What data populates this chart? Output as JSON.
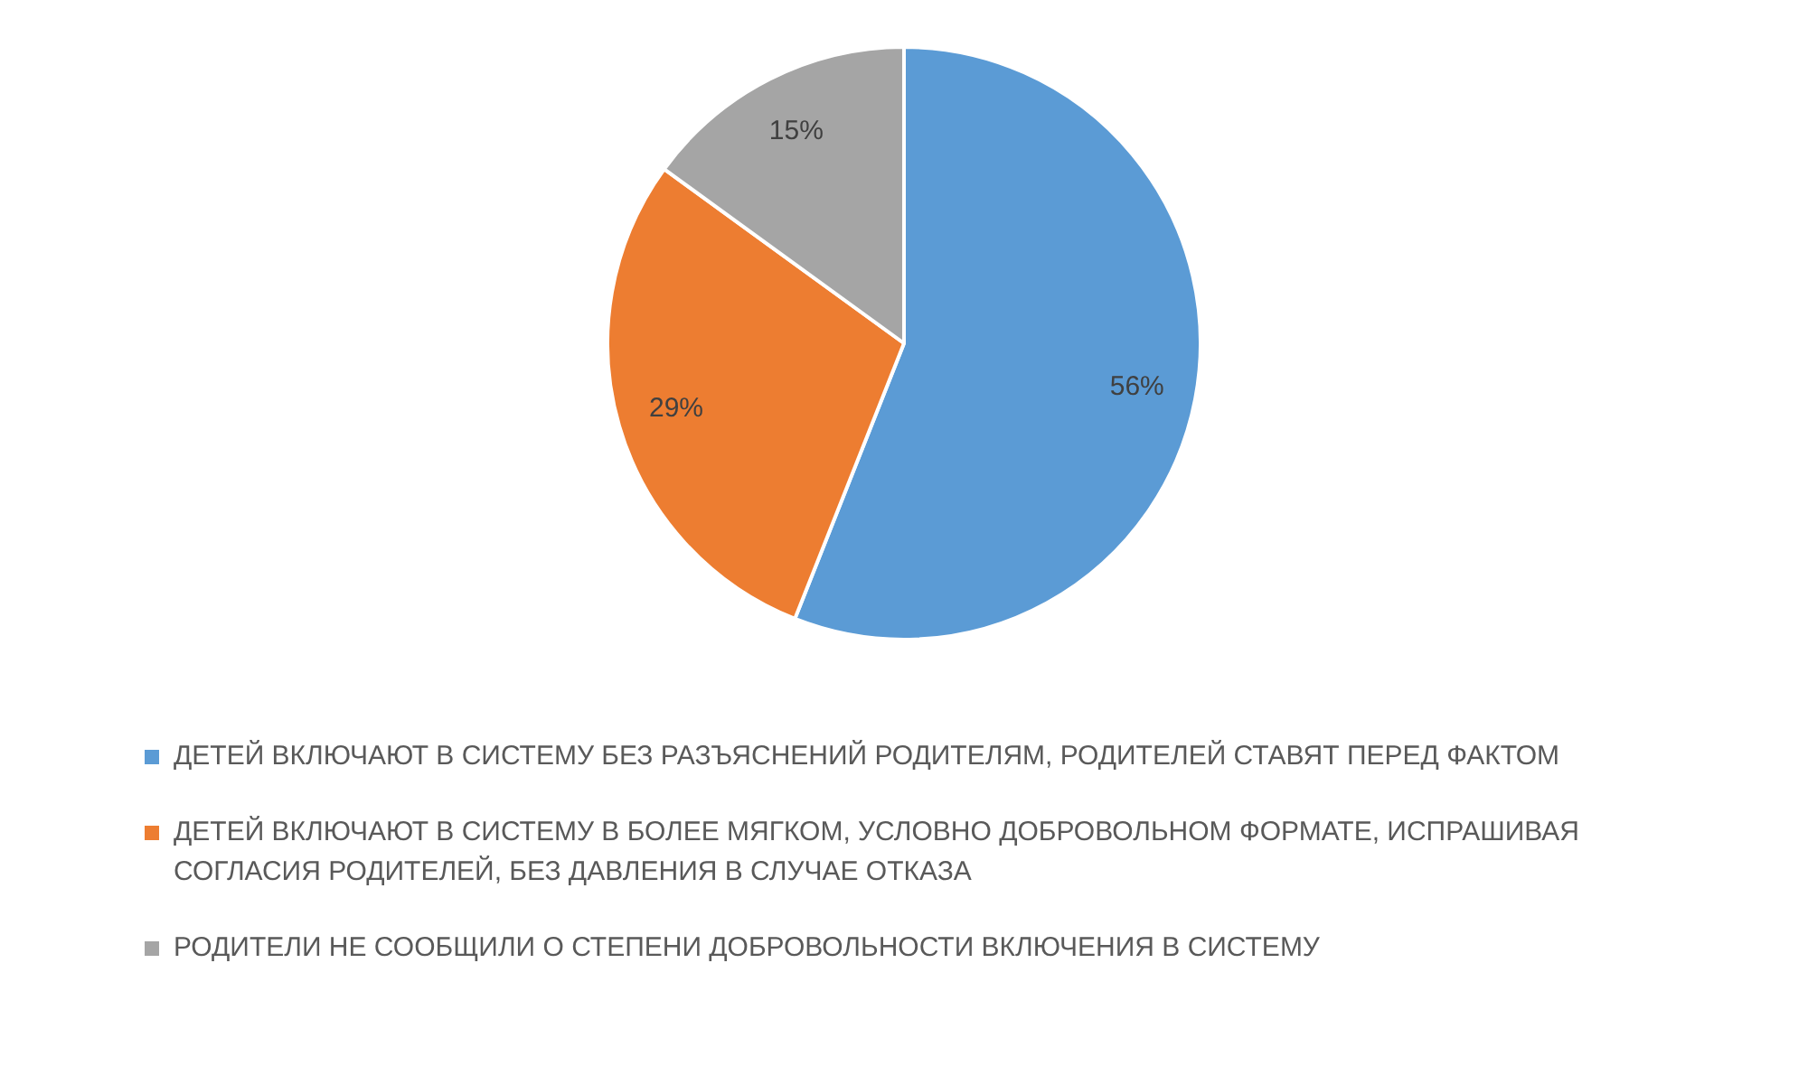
{
  "chart_data": {
    "type": "pie",
    "categories": [
      "ДЕТЕЙ ВКЛЮЧАЮТ В СИСТЕМУ БЕЗ РАЗЪЯСНЕНИЙ РОДИТЕЛЯМ, РОДИТЕЛЕЙ СТАВЯТ ПЕРЕД ФАКТОМ",
      "ДЕТЕЙ ВКЛЮЧАЮТ В СИСТЕМУ В БОЛЕЕ МЯГКОМ, УСЛОВНО ДОБРОВОЛЬНОМ ФОРМАТЕ, ИСПРАШИВАЯ СОГЛАСИЯ РОДИТЕЛЕЙ, БЕЗ ДАВЛЕНИЯ В СЛУЧАЕ ОТКАЗА",
      "РОДИТЕЛИ НЕ СООБЩИЛИ О СТЕПЕНИ ДОБРОВОЛЬНОСТИ ВКЛЮЧЕНИЯ В СИСТЕМУ"
    ],
    "values": [
      56,
      29,
      15
    ],
    "value_labels": [
      "56%",
      "29%",
      "15%"
    ],
    "colors": [
      "#5b9bd5",
      "#ed7d31",
      "#a5a5a5"
    ],
    "legend": "bottom"
  }
}
